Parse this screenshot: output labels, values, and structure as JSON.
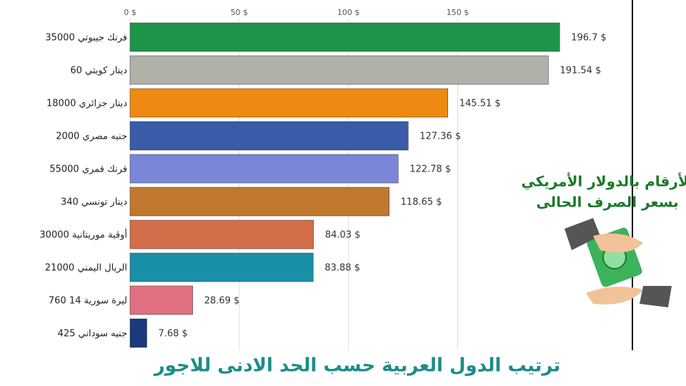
{
  "chart_data": {
    "type": "bar",
    "orientation": "horizontal",
    "title": "ترتيب الدول العربية حسب الحد الادنى للاجور",
    "annotations": [
      "الأرقام بالدولار الأمريكي",
      "بسعر الصرف الحالى"
    ],
    "categories": [
      "فرنك جيبوتي 35000",
      "دينار كويتي 60",
      "دينار جزائري 18000",
      "جنيه مصري 2000",
      "فرنك قمري 55000",
      "دينار تونسي 340",
      "أوقية موريتانية 30000",
      "الريال اليمني 21000",
      "ليرة سورية 14 760",
      "جنيه سوداني 425"
    ],
    "values": [
      196.7,
      191.54,
      145.51,
      127.36,
      122.78,
      118.65,
      84.03,
      83.88,
      28.69,
      7.68
    ],
    "value_labels": [
      "196.7 $",
      "191.54 $",
      "145.51 $",
      "127.36 $",
      "122.78 $",
      "118.65 $",
      "84.03 $",
      "83.88 $",
      "28.69 $",
      "7.68 $"
    ],
    "colors": [
      "#1e9448",
      "#b1b1a9",
      "#ee8a12",
      "#3a5ba8",
      "#7b86d8",
      "#c0782f",
      "#d46e4a",
      "#1a8fa8",
      "#e07080",
      "#1a3a7a"
    ],
    "xlim": [
      0,
      230
    ],
    "xticks": [
      {
        "value": 0,
        "label": "0 $"
      },
      {
        "value": 50,
        "label": "50 $"
      },
      {
        "value": 100,
        "label": "100 $"
      },
      {
        "value": 150,
        "label": "150 $"
      }
    ],
    "grid": true
  }
}
